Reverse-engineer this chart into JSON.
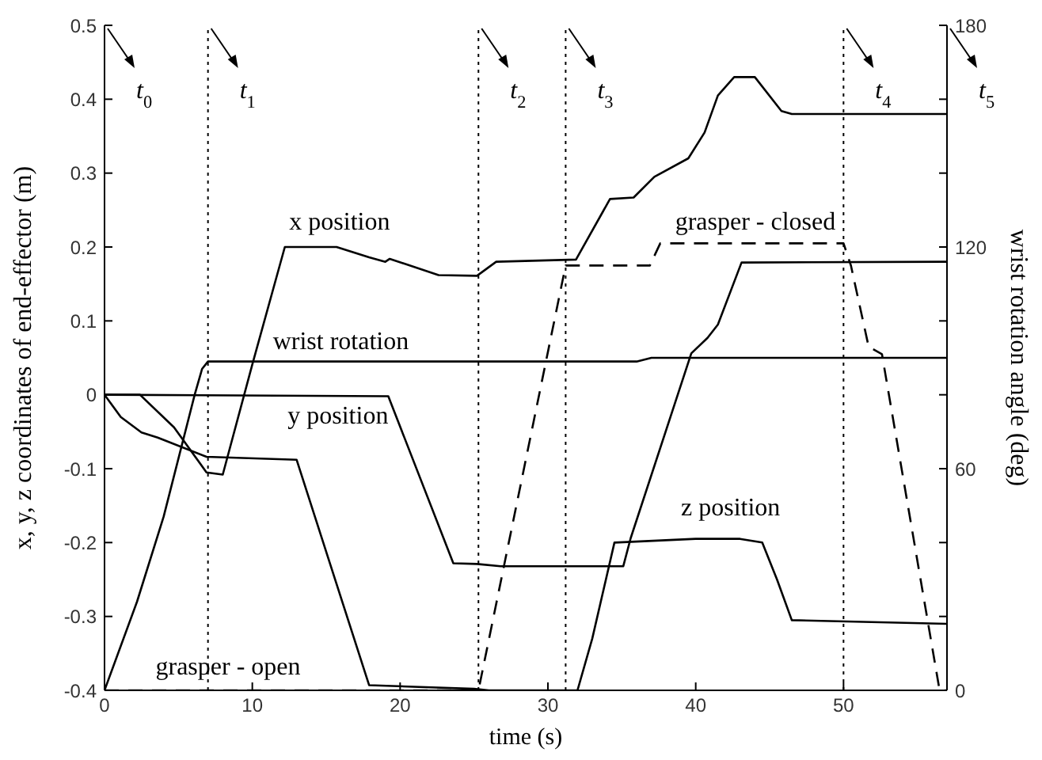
{
  "chart_data": {
    "type": "line",
    "xlabel": "time (s)",
    "ylabel": "x, y, z coordinates of end-effector (m)",
    "y2label": "wrist rotation angle (deg)",
    "xlim": [
      0,
      57
    ],
    "xticks": [
      0,
      10,
      20,
      30,
      40,
      50
    ],
    "ylim": [
      -0.4,
      0.5
    ],
    "yticks": [
      -0.4,
      -0.3,
      -0.2,
      -0.1,
      0,
      0.1,
      0.2,
      0.3,
      0.4,
      0.5
    ],
    "y2lim": [
      0,
      180
    ],
    "y2ticks": [
      0,
      {
        "value": 20,
        "label": null
      },
      {
        "value": 40,
        "label": null
      },
      60,
      {
        "value": 80,
        "label": null
      },
      {
        "value": 100,
        "label": null
      },
      120,
      {
        "value": 140,
        "label": null
      },
      {
        "value": 160,
        "label": null
      },
      180
    ],
    "series": [
      {
        "name": "x position",
        "color": "#000000",
        "line_style": "solid",
        "x": [
          0,
          2.4,
          4.7,
          6.9,
          8,
          10,
          12.2,
          14.3,
          15.7,
          17.9,
          19,
          19.3,
          22.6,
          25.2,
          26.5,
          31.9,
          34.2,
          35.8,
          37.2,
          39.5,
          40.6,
          41.5,
          42.6,
          44,
          45.8,
          46.5,
          57
        ],
        "values": [
          0,
          0,
          -0.044,
          -0.105,
          -0.108,
          0.041,
          0.2,
          0.2,
          0.2,
          0.186,
          0.18,
          0.184,
          0.162,
          0.161,
          0.18,
          0.183,
          0.265,
          0.267,
          0.295,
          0.32,
          0.355,
          0.405,
          0.43,
          0.43,
          0.384,
          0.38,
          0.38
        ]
      },
      {
        "name": "y position",
        "color": "#000000",
        "line_style": "solid",
        "x": [
          0,
          19.2,
          23.6,
          25.2,
          26.8,
          35.1,
          35.6,
          39.7,
          40.8,
          41.5,
          43.1,
          57
        ],
        "values": [
          0,
          -0.002,
          -0.228,
          -0.229,
          -0.232,
          -0.232,
          -0.194,
          0.056,
          0.077,
          0.095,
          0.179,
          0.18
        ]
      },
      {
        "name": "z position",
        "color": "#000000",
        "line_style": "solid",
        "x": [
          0,
          1.1,
          2.5,
          3.6,
          6.9,
          13,
          17.9,
          25,
          26,
          32,
          33,
          34.5,
          40,
          43,
          44.5,
          45.5,
          46.5,
          57
        ],
        "values": [
          0,
          -0.03,
          -0.051,
          -0.058,
          -0.084,
          -0.088,
          -0.393,
          -0.398,
          -0.4,
          -0.4,
          -0.33,
          -0.2,
          -0.195,
          -0.195,
          -0.2,
          -0.25,
          -0.305,
          -0.31
        ]
      },
      {
        "name": "wrist rotation",
        "color": "#000000",
        "line_style": "solid",
        "axis": "y2",
        "x": [
          0,
          2.2,
          4,
          6.1,
          6.6,
          7,
          36,
          37,
          57
        ],
        "values": [
          0,
          24,
          47,
          80,
          87,
          89,
          89,
          90,
          90
        ]
      },
      {
        "color": "#000000",
        "line_style": "dashed",
        "axis": "y2",
        "x": [
          0,
          25.3,
          31.2,
          36.9,
          37.6,
          50,
          50.5,
          51.7,
          52.6,
          56.5,
          57
        ],
        "values": [
          0,
          0,
          115,
          115,
          121,
          121,
          115,
          93,
          91,
          0,
          0
        ]
      }
    ],
    "ref_lines": [
      {
        "axis": "x",
        "value": 7,
        "label": "t$_{1}$",
        "line_style": "dotted"
      },
      {
        "axis": "x",
        "value": 25.3,
        "label": "t$_{2}$",
        "line_style": "dotted"
      },
      {
        "axis": "x",
        "value": 31.2,
        "label": "t$_{3}$",
        "line_style": "dotted"
      },
      {
        "axis": "x",
        "value": 50,
        "label": "t$_{4}$",
        "line_style": "dotted"
      }
    ],
    "annotations": [
      "t$_{0}$",
      "t$_{5}$",
      "grasper - open",
      "grasper - closed"
    ]
  }
}
